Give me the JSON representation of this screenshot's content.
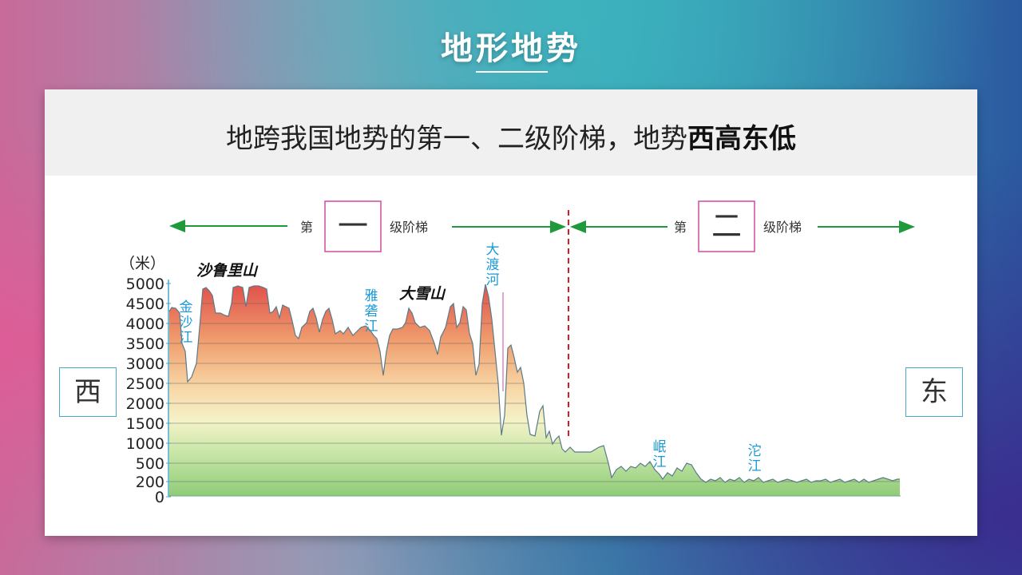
{
  "title": "地形地势",
  "subtitle": {
    "normal": "地跨我国地势的第一、二级阶梯，地势",
    "bold": "西高东低"
  },
  "direction": {
    "west": "西",
    "east": "东"
  },
  "steps": {
    "first": {
      "prefix": "第",
      "numeral": "一",
      "suffix": "级阶梯"
    },
    "second": {
      "prefix": "第",
      "numeral": "二",
      "suffix": "级阶梯"
    }
  },
  "y_axis": {
    "unit": "（米）",
    "ticks": [
      "5000",
      "4500",
      "4000",
      "3500",
      "3000",
      "2500",
      "2000",
      "1500",
      "1000",
      "500",
      "200",
      "0"
    ]
  },
  "labels": {
    "shaluli": "沙鲁里山",
    "daxue": "大雪山",
    "jinsha": [
      "金",
      "沙",
      "江"
    ],
    "yalong": [
      "雅",
      "砻",
      "江"
    ],
    "dadu": [
      "大",
      "渡",
      "河"
    ],
    "min": [
      "岷",
      "江"
    ],
    "tuo": [
      "沱",
      "江"
    ]
  },
  "colors": {
    "arrow": "#1e9a3c",
    "divider": "#d0202a",
    "river_label": "#1a9ad6",
    "step_box": "#d04aa0"
  }
}
